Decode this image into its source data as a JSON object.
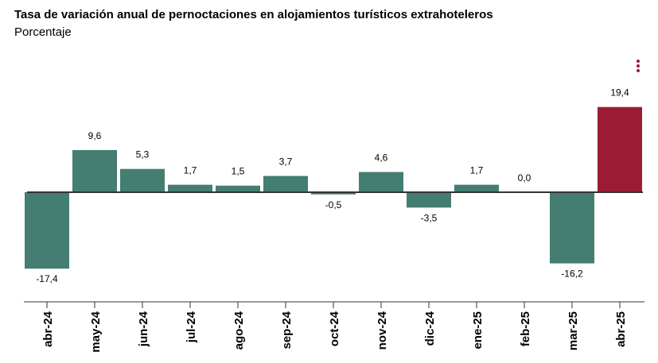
{
  "header": {
    "title": "Tasa de variación anual de pernoctaciones en alojamientos turísticos extrahoteleros",
    "subtitle": "Porcentaje",
    "menu_icon": "vertical-dots-icon"
  },
  "colors": {
    "default_bar": "#447d72",
    "highlight_bar": "#9b1b35",
    "zero_bar": "#9a9a9a",
    "menu": "#9b1b35",
    "axis": "#333333"
  },
  "chart_data": {
    "type": "bar",
    "title": "Tasa de variación anual de pernoctaciones en alojamientos turísticos extrahoteleros",
    "subtitle": "Porcentaje",
    "categories": [
      "abr-24",
      "may-24",
      "jun-24",
      "jul-24",
      "ago-24",
      "sep-24",
      "oct-24",
      "nov-24",
      "dic-24",
      "ene-25",
      "feb-25",
      "mar-25",
      "abr-25"
    ],
    "values": [
      -17.4,
      9.6,
      5.3,
      1.7,
      1.5,
      3.7,
      -0.5,
      4.6,
      -3.5,
      1.7,
      0.0,
      -16.2,
      19.4
    ],
    "labels": [
      "-17,4",
      "9,6",
      "5,3",
      "1,7",
      "1,5",
      "3,7",
      "-0,5",
      "4,6",
      "-3,5",
      "1,7",
      "0,0",
      "-16,2",
      "19,4"
    ],
    "highlight_index": 12,
    "grid": false,
    "legend": "none"
  }
}
